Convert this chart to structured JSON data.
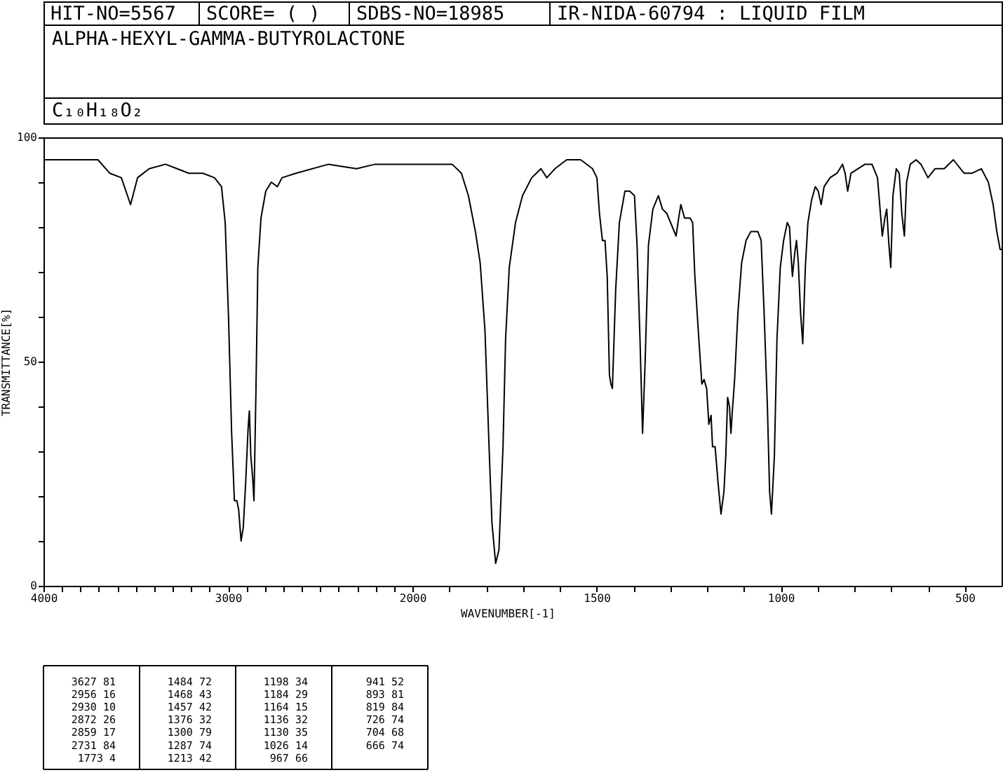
{
  "chart_data": [
    {
      "type": "other",
      "title": "ALPHA-HEXYL-GAMMA-BUTYROLACTONE",
      "subtitle": "C₁₀H₁₈O₂",
      "annotations": [
        "HIT-NO=5567",
        "SCORE= ( )",
        "SDBS-NO=18985",
        "IR-NIDA-60794 : LIQUID FILM"
      ]
    },
    {
      "type": "line",
      "ylabel": "TRANSMITTANCE[%]",
      "grid": false,
      "line_style": "solid",
      "xlim": [
        4000,
        2000
      ],
      "ylim": [
        0,
        100
      ],
      "xticks": [
        4000,
        {
          "value": 3900,
          "label": null
        },
        {
          "value": 3800,
          "label": null
        },
        {
          "value": 3700,
          "label": null
        },
        {
          "value": 3600,
          "label": null
        },
        {
          "value": 3500,
          "label": null
        },
        {
          "value": 3400,
          "label": null
        },
        {
          "value": 3300,
          "label": null
        },
        {
          "value": 3200,
          "label": null
        },
        {
          "value": 3100,
          "label": null
        },
        3000,
        {
          "value": 2900,
          "label": null
        },
        {
          "value": 2800,
          "label": null
        },
        {
          "value": 2700,
          "label": null
        },
        {
          "value": 2600,
          "label": null
        },
        {
          "value": 2500,
          "label": null
        },
        {
          "value": 2400,
          "label": null
        },
        {
          "value": 2300,
          "label": null
        },
        {
          "value": 2200,
          "label": null
        },
        {
          "value": 2100,
          "label": null
        },
        2000
      ],
      "yticks": [
        0,
        {
          "value": 10,
          "label": null
        },
        {
          "value": 20,
          "label": null
        },
        {
          "value": 30,
          "label": null
        },
        {
          "value": 40,
          "label": null
        },
        50,
        {
          "value": 60,
          "label": null
        },
        {
          "value": 70,
          "label": null
        },
        {
          "value": 80,
          "label": null
        },
        {
          "value": 90,
          "label": null
        },
        100
      ],
      "series": [
        {
          "color": "#000000",
          "x": [
            4000,
            3768,
            3705,
            3641,
            3578,
            3528,
            3490,
            3427,
            3338,
            3212,
            3136,
            3073,
            3035,
            3015,
            2997,
            2980,
            2965,
            2952,
            2942,
            2929,
            2917,
            2904,
            2891,
            2884,
            2876,
            2866,
            2859,
            2848,
            2838,
            2821,
            2795,
            2765,
            2732,
            2707,
            2631,
            2455,
            2303,
            2202,
            2025,
            2000
          ],
          "values": [
            95,
            95,
            95,
            92,
            91,
            85,
            91,
            93,
            94,
            92,
            92,
            91,
            89,
            81,
            60,
            34,
            19,
            19,
            17,
            10,
            13,
            23,
            35,
            39,
            29,
            24,
            19,
            44,
            71,
            82,
            88,
            90,
            89,
            91,
            92,
            94,
            93,
            94,
            94,
            94
          ]
        }
      ]
    },
    {
      "type": "line",
      "xlabel": "WAVENUMBER[-1]",
      "grid": false,
      "line_style": "solid",
      "tick_labels": "x",
      "xlim": [
        2000,
        400
      ],
      "ylim": [
        0,
        100
      ],
      "xticks": [
        {
          "value": 1900,
          "label": null
        },
        {
          "value": 1800,
          "label": null
        },
        {
          "value": 1700,
          "label": null
        },
        {
          "value": 1600,
          "label": null
        },
        1500,
        {
          "value": 1400,
          "label": null
        },
        {
          "value": 1300,
          "label": null
        },
        {
          "value": 1200,
          "label": null
        },
        {
          "value": 1100,
          "label": null
        },
        1000,
        {
          "value": 900,
          "label": null
        },
        {
          "value": 800,
          "label": null
        },
        {
          "value": 700,
          "label": null
        },
        {
          "value": 600,
          "label": null
        },
        500
      ],
      "series": [
        {
          "color": "#000000",
          "x": [
            2000,
            1924,
            1892,
            1867,
            1848,
            1829,
            1816,
            1803,
            1791,
            1784,
            1774,
            1765,
            1754,
            1747,
            1737,
            1720,
            1701,
            1676,
            1651,
            1635,
            1613,
            1581,
            1543,
            1511,
            1499,
            1492,
            1484,
            1477,
            1471,
            1465,
            1461,
            1457,
            1448,
            1438,
            1423,
            1410,
            1397,
            1390,
            1382,
            1375,
            1368,
            1359,
            1347,
            1332,
            1321,
            1309,
            1294,
            1284,
            1277,
            1271,
            1261,
            1246,
            1239,
            1233,
            1223,
            1214,
            1208,
            1201,
            1195,
            1189,
            1185,
            1178,
            1170,
            1162,
            1154,
            1149,
            1144,
            1139,
            1135,
            1132,
            1125,
            1116,
            1106,
            1094,
            1081,
            1062,
            1053,
            1045,
            1036,
            1030,
            1025,
            1017,
            1010,
            1001,
            992,
            982,
            976,
            972,
            968,
            962,
            957,
            952,
            946,
            940,
            933,
            926,
            916,
            906,
            898,
            890,
            882,
            866,
            847,
            832,
            825,
            818,
            809,
            790,
            771,
            752,
            737,
            729,
            724,
            717,
            712,
            706,
            701,
            695,
            686,
            678,
            671,
            664,
            658,
            648,
            632,
            619,
            600,
            581,
            556,
            531,
            502,
            480,
            455,
            436,
            423,
            413,
            404,
            400
          ],
          "values": [
            94,
            94,
            94,
            92,
            87,
            79,
            72,
            57,
            29,
            14,
            5,
            8,
            31,
            55,
            71,
            81,
            87,
            91,
            93,
            91,
            93,
            95,
            95,
            93,
            91,
            83,
            77,
            77,
            69,
            47,
            45,
            44,
            66,
            81,
            88,
            88,
            87,
            76,
            55,
            34,
            50,
            76,
            84,
            87,
            84,
            83,
            80,
            78,
            82,
            85,
            82,
            82,
            81,
            69,
            56,
            45,
            46,
            44,
            36,
            38,
            31,
            31,
            23,
            16,
            21,
            29,
            42,
            40,
            34,
            38,
            46,
            61,
            72,
            77,
            79,
            79,
            77,
            61,
            40,
            21,
            16,
            29,
            55,
            71,
            77,
            81,
            80,
            74,
            69,
            74,
            77,
            72,
            61,
            54,
            71,
            81,
            86,
            89,
            88,
            85,
            89,
            91,
            92,
            94,
            92,
            88,
            92,
            93,
            94,
            94,
            91,
            83,
            78,
            82,
            84,
            76,
            71,
            87,
            93,
            92,
            83,
            78,
            90,
            94,
            95,
            94,
            91,
            93,
            93,
            95,
            92,
            92,
            93,
            90,
            85,
            79,
            75,
            75
          ]
        }
      ]
    },
    {
      "type": "other",
      "annotations": [
        "3627 81",
        "2956 16",
        "2930 10",
        "2872 26",
        "2859 17",
        "2731 84",
        "1773 4",
        "1484 72",
        "1468 43",
        "1457 42",
        "1376 32",
        "1300 79",
        "1287 74",
        "1213 42",
        "1198 34",
        "1184 29",
        "1164 15",
        "1136 32",
        "1130 35",
        "1026 14",
        "967 66",
        "941 52",
        "893 81",
        "819 84",
        "726 74",
        "704 68",
        "666 74"
      ]
    }
  ]
}
